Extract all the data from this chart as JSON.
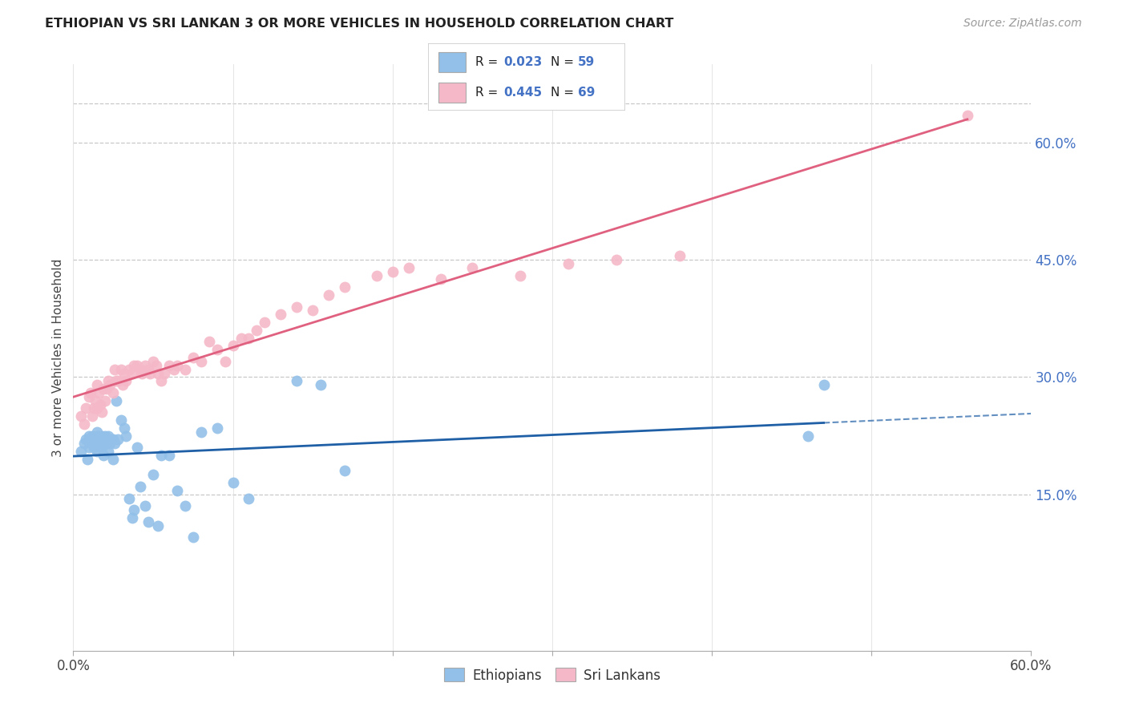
{
  "title": "ETHIOPIAN VS SRI LANKAN 3 OR MORE VEHICLES IN HOUSEHOLD CORRELATION CHART",
  "source": "Source: ZipAtlas.com",
  "ylabel": "3 or more Vehicles in Household",
  "xlim": [
    0.0,
    0.6
  ],
  "ylim": [
    -0.05,
    0.7
  ],
  "blue_color": "#92c0e8",
  "pink_color": "#f5b8c8",
  "blue_line_color": "#1f5fa6",
  "pink_line_color": "#e06080",
  "background_color": "#ffffff",
  "grid_color": "#c8c8c8",
  "label_color_blue": "#4472c4",
  "legend_r_blue": "0.023",
  "legend_n_blue": "59",
  "legend_r_pink": "0.445",
  "legend_n_pink": "69",
  "ethiopians_x": [
    0.005,
    0.007,
    0.008,
    0.009,
    0.01,
    0.01,
    0.011,
    0.012,
    0.012,
    0.013,
    0.013,
    0.014,
    0.015,
    0.015,
    0.015,
    0.016,
    0.017,
    0.017,
    0.018,
    0.018,
    0.019,
    0.019,
    0.02,
    0.021,
    0.022,
    0.022,
    0.023,
    0.024,
    0.025,
    0.025,
    0.026,
    0.027,
    0.028,
    0.03,
    0.032,
    0.033,
    0.035,
    0.037,
    0.038,
    0.04,
    0.042,
    0.045,
    0.047,
    0.05,
    0.053,
    0.055,
    0.06,
    0.065,
    0.07,
    0.075,
    0.08,
    0.09,
    0.1,
    0.11,
    0.14,
    0.155,
    0.17,
    0.46,
    0.47
  ],
  "ethiopians_y": [
    0.205,
    0.215,
    0.22,
    0.195,
    0.21,
    0.225,
    0.22,
    0.215,
    0.225,
    0.21,
    0.22,
    0.215,
    0.23,
    0.205,
    0.225,
    0.225,
    0.21,
    0.22,
    0.21,
    0.225,
    0.2,
    0.215,
    0.225,
    0.215,
    0.225,
    0.205,
    0.215,
    0.22,
    0.195,
    0.22,
    0.215,
    0.27,
    0.22,
    0.245,
    0.235,
    0.225,
    0.145,
    0.12,
    0.13,
    0.21,
    0.16,
    0.135,
    0.115,
    0.175,
    0.11,
    0.2,
    0.2,
    0.155,
    0.135,
    0.095,
    0.23,
    0.235,
    0.165,
    0.145,
    0.295,
    0.29,
    0.18,
    0.225,
    0.29
  ],
  "srilankans_x": [
    0.005,
    0.007,
    0.008,
    0.01,
    0.011,
    0.012,
    0.013,
    0.014,
    0.015,
    0.015,
    0.016,
    0.017,
    0.018,
    0.019,
    0.02,
    0.021,
    0.022,
    0.023,
    0.025,
    0.026,
    0.027,
    0.028,
    0.03,
    0.031,
    0.032,
    0.033,
    0.035,
    0.037,
    0.038,
    0.04,
    0.042,
    0.043,
    0.045,
    0.047,
    0.048,
    0.05,
    0.052,
    0.053,
    0.055,
    0.057,
    0.06,
    0.063,
    0.065,
    0.07,
    0.075,
    0.08,
    0.085,
    0.09,
    0.095,
    0.1,
    0.105,
    0.11,
    0.115,
    0.12,
    0.13,
    0.14,
    0.15,
    0.16,
    0.17,
    0.19,
    0.2,
    0.21,
    0.23,
    0.25,
    0.28,
    0.31,
    0.34,
    0.38,
    0.56
  ],
  "srilankans_y": [
    0.25,
    0.24,
    0.26,
    0.275,
    0.28,
    0.25,
    0.26,
    0.27,
    0.26,
    0.29,
    0.28,
    0.265,
    0.255,
    0.285,
    0.27,
    0.285,
    0.295,
    0.29,
    0.28,
    0.31,
    0.295,
    0.295,
    0.31,
    0.29,
    0.305,
    0.295,
    0.31,
    0.305,
    0.315,
    0.315,
    0.31,
    0.305,
    0.315,
    0.31,
    0.305,
    0.32,
    0.315,
    0.305,
    0.295,
    0.305,
    0.315,
    0.31,
    0.315,
    0.31,
    0.325,
    0.32,
    0.345,
    0.335,
    0.32,
    0.34,
    0.35,
    0.35,
    0.36,
    0.37,
    0.38,
    0.39,
    0.385,
    0.405,
    0.415,
    0.43,
    0.435,
    0.44,
    0.425,
    0.44,
    0.43,
    0.445,
    0.45,
    0.455,
    0.635
  ]
}
